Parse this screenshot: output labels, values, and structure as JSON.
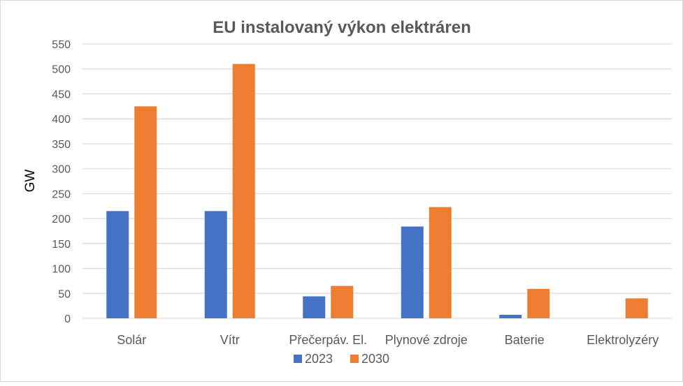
{
  "chart_data": {
    "type": "bar",
    "title": "EU instalovaný výkon elektráren",
    "xlabel": "",
    "ylabel": "GW",
    "ylim": [
      0,
      550
    ],
    "yticks": [
      0,
      50,
      100,
      150,
      200,
      250,
      300,
      350,
      400,
      450,
      500,
      550
    ],
    "grid": true,
    "legend_position": "bottom",
    "categories": [
      "Solár",
      "Vítr",
      "Přečerpáv. El.",
      "Plynové zdroje",
      "Baterie",
      "Elektrolyzéry"
    ],
    "series": [
      {
        "name": "2023",
        "color": "#4472c4",
        "values": [
          215,
          215,
          44,
          184,
          7,
          0
        ]
      },
      {
        "name": "2030",
        "color": "#ed7d31",
        "values": [
          425,
          510,
          65,
          223,
          59,
          40
        ]
      }
    ]
  }
}
